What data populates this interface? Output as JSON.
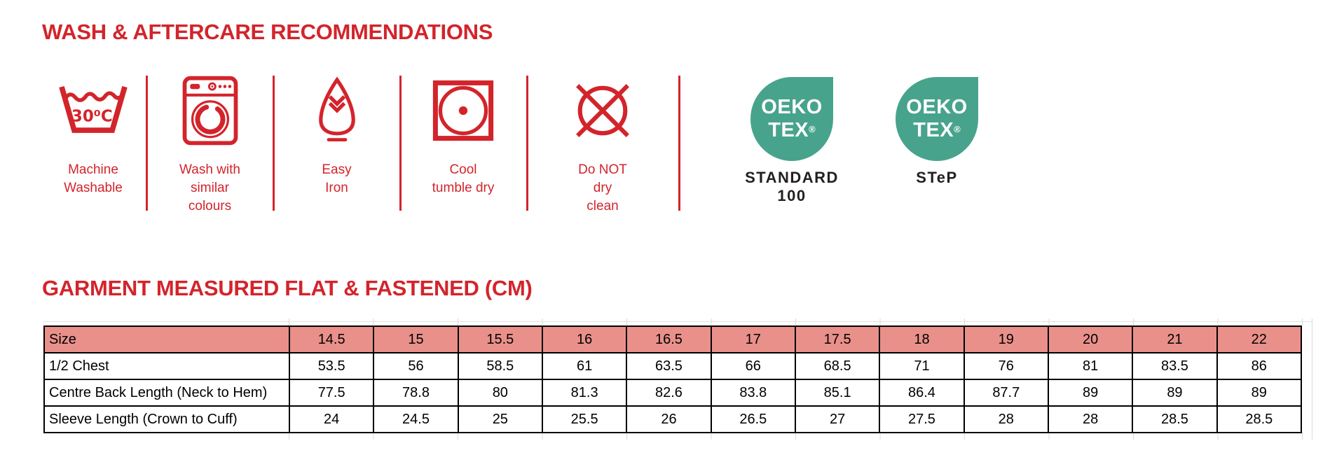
{
  "headings": {
    "wash_care": "WASH & AFTERCARE RECOMMENDATIONS",
    "size_chart": "GARMENT MEASURED FLAT & FASTENED (CM)"
  },
  "colors": {
    "accent_red": "#d3242b",
    "oeko_teal": "#48a38c",
    "table_header_pink": "#e9908b"
  },
  "care_items": [
    {
      "icon": "machine-washable-icon",
      "temp": "30⁰C",
      "lines": [
        "Machine",
        "Washable"
      ]
    },
    {
      "icon": "washing-machine-icon",
      "lines": [
        "Wash with",
        "similar",
        "colours"
      ]
    },
    {
      "icon": "easy-iron-icon",
      "lines": [
        "Easy",
        "Iron"
      ]
    },
    {
      "icon": "cool-tumble-dry-icon",
      "lines": [
        "Cool",
        "tumble dry"
      ]
    },
    {
      "icon": "do-not-dry-clean-icon",
      "lines": [
        "Do NOT",
        "dry",
        "clean"
      ]
    }
  ],
  "certifications": [
    {
      "badge_line1": "OEKO",
      "badge_line2": "TEX",
      "badge_reg": "®",
      "label_lines": [
        "STANDARD",
        "100"
      ]
    },
    {
      "badge_line1": "OEKO",
      "badge_line2": "TEX",
      "badge_reg": "®",
      "label_lines": [
        "STeP"
      ]
    }
  ],
  "size_table": {
    "header_label": "Size",
    "sizes": [
      "14.5",
      "15",
      "15.5",
      "16",
      "16.5",
      "17",
      "17.5",
      "18",
      "19",
      "20",
      "21",
      "22"
    ],
    "rows": [
      {
        "label": "1/2 Chest",
        "values": [
          "53.5",
          "56",
          "58.5",
          "61",
          "63.5",
          "66",
          "68.5",
          "71",
          "76",
          "81",
          "83.5",
          "86"
        ]
      },
      {
        "label": "Centre Back Length (Neck to Hem)",
        "values": [
          "77.5",
          "78.8",
          "80",
          "81.3",
          "82.6",
          "83.8",
          "85.1",
          "86.4",
          "87.7",
          "89",
          "89",
          "89"
        ]
      },
      {
        "label": "Sleeve Length (Crown to Cuff)",
        "values": [
          "24",
          "24.5",
          "25",
          "25.5",
          "26",
          "26.5",
          "27",
          "27.5",
          "28",
          "28",
          "28.5",
          "28.5"
        ]
      }
    ]
  }
}
